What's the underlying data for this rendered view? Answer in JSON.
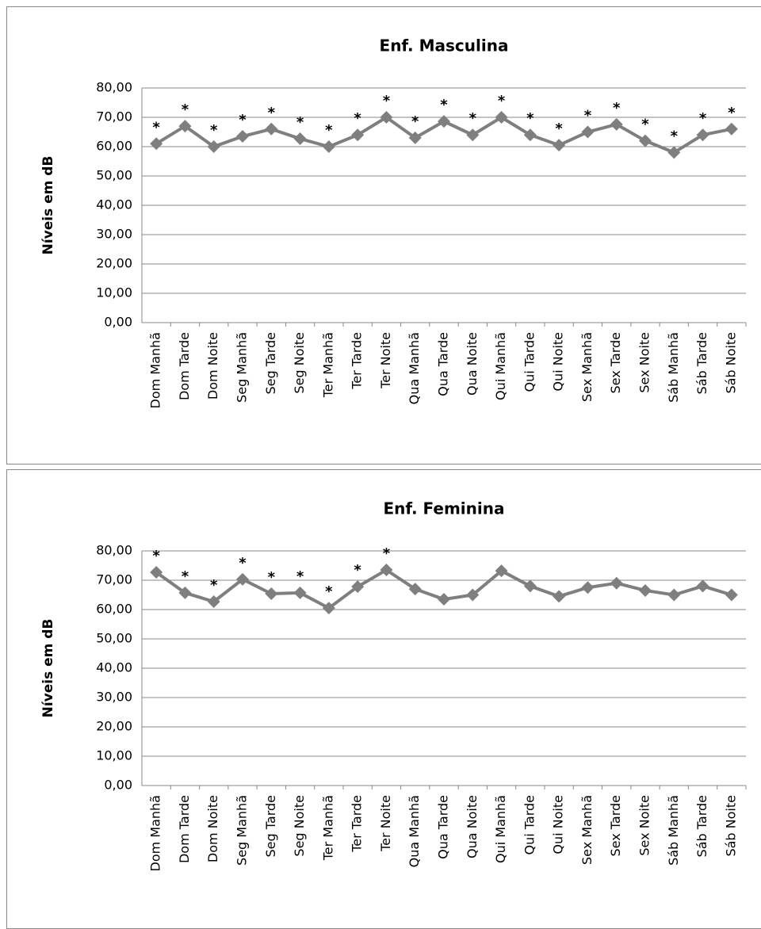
{
  "chart_data": [
    {
      "type": "line",
      "title": "Enf. Masculina",
      "y_label": "Níveis em dB",
      "categories": [
        "Dom Manhã",
        "Dom Tarde",
        "Dom Noite",
        "Seg Manhã",
        "Seg Tarde",
        "Seg Noite",
        "Ter Manhã",
        "Ter Tarde",
        "Ter Noite",
        "Qua Manhã",
        "Qua Tarde",
        "Qua Noite",
        "Qui Manhã",
        "Qui Tarde",
        "Qui Noite",
        "Sex Manhã",
        "Sex Tarde",
        "Sex Noite",
        "Sáb Manhã",
        "Sáb Tarde",
        "Sáb Noite"
      ],
      "values": [
        61,
        67,
        60,
        63.5,
        66,
        62.7,
        60,
        64,
        70,
        63,
        68.6,
        64,
        70,
        64,
        60.5,
        65,
        67.6,
        62,
        58,
        64,
        66
      ],
      "point_labels": [
        "*",
        "*",
        "*",
        "*",
        "*",
        "*",
        "*",
        "*",
        "*",
        "*",
        "*",
        "*",
        "*",
        "*",
        "*",
        "*",
        "*",
        "*",
        "*",
        "*",
        "*"
      ],
      "color": "#7f7f7f",
      "ylim": [
        0,
        80
      ],
      "yticks": [
        {
          "value": 0,
          "label": "0,00"
        },
        {
          "value": 10,
          "label": "10,00"
        },
        {
          "value": 20,
          "label": "20,00"
        },
        {
          "value": 30,
          "label": "30,00"
        },
        {
          "value": 40,
          "label": "40,00"
        },
        {
          "value": 50,
          "label": "50,00"
        },
        {
          "value": 60,
          "label": "60,00"
        },
        {
          "value": 70,
          "label": "70,00"
        },
        {
          "value": 80,
          "label": "80,00"
        }
      ],
      "grid": true
    },
    {
      "type": "line",
      "title": "Enf. Feminina",
      "y_label": "Níveis em dB",
      "categories": [
        "Dom Manhã",
        "Dom Tarde",
        "Dom Noite",
        "Seg Manhã",
        "Seg Tarde",
        "Seg Noite",
        "Ter Manhã",
        "Ter Tarde",
        "Ter Noite",
        "Qua Manhã",
        "Qua Tarde",
        "Qua Noite",
        "Qui Manhã",
        "Qui Tarde",
        "Qui Noite",
        "Sex Manhã",
        "Sex Tarde",
        "Sex Noite",
        "Sáb Manhã",
        "Sáb Tarde",
        "Sáb Noite"
      ],
      "values": [
        72.7,
        65.7,
        62.7,
        70.3,
        65.4,
        65.7,
        60.5,
        67.8,
        73.5,
        67,
        63.5,
        65,
        73.2,
        68,
        64.5,
        67.5,
        69,
        66.5,
        65,
        68,
        65
      ],
      "point_labels": [
        "*",
        "*",
        "*",
        "*",
        "*",
        "*",
        "*",
        "*",
        "*",
        null,
        null,
        null,
        null,
        null,
        null,
        null,
        null,
        null,
        null,
        null,
        null
      ],
      "color": "#7f7f7f",
      "ylim": [
        0,
        80
      ],
      "yticks": [
        {
          "value": 0,
          "label": "0,00"
        },
        {
          "value": 10,
          "label": "10,00"
        },
        {
          "value": 20,
          "label": "20,00"
        },
        {
          "value": 30,
          "label": "30,00"
        },
        {
          "value": 40,
          "label": "40,00"
        },
        {
          "value": 50,
          "label": "50,00"
        },
        {
          "value": 60,
          "label": "60,00"
        },
        {
          "value": 70,
          "label": "70,00"
        },
        {
          "value": 80,
          "label": "80,00"
        }
      ],
      "grid": true
    }
  ]
}
